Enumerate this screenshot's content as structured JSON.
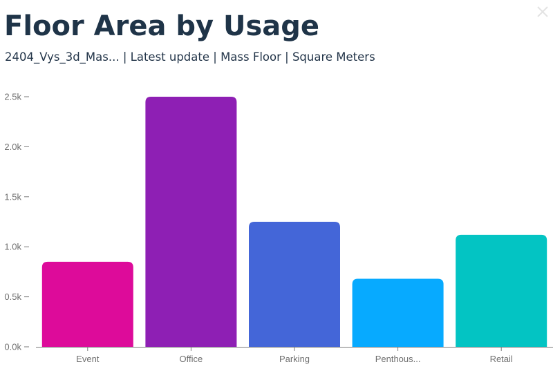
{
  "header": {
    "title": "Floor Area by Usage",
    "subtitle": "2404_Vys_3d_Mas... | Latest update | Mass Floor | Square Meters"
  },
  "close_icon": "close-icon",
  "chart_data": {
    "type": "bar",
    "categories": [
      "Event",
      "Office",
      "Parking",
      "Penthous...",
      "Retail"
    ],
    "values": [
      850,
      2500,
      1250,
      680,
      1120
    ],
    "colors": [
      "#dd0b9a",
      "#8e1fb4",
      "#4466d8",
      "#07aaff",
      "#03c4c3"
    ],
    "ylim": [
      0,
      2500
    ],
    "yticks": [
      0,
      500,
      1000,
      1500,
      2000,
      2500
    ],
    "ytick_labels": [
      "0.0k",
      "0.5k",
      "1.0k",
      "1.5k",
      "2.0k",
      "2.5k"
    ],
    "title": "",
    "xlabel": "",
    "ylabel": "",
    "grid": false,
    "axis_color": "#7a7a7a"
  }
}
